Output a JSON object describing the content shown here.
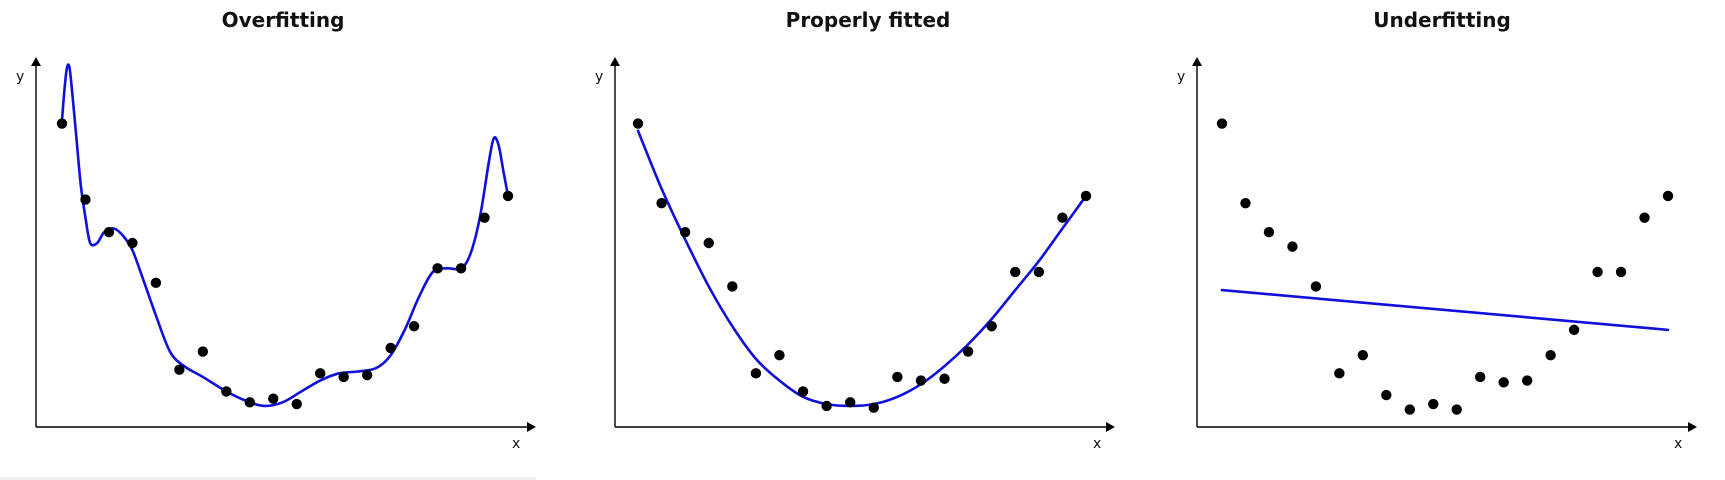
{
  "chart_data": [
    {
      "type": "line",
      "title": "Overfitting",
      "xlabel": "x",
      "ylabel": "y",
      "xlim": [
        0,
        1
      ],
      "ylim": [
        0,
        1
      ],
      "fit_color": "#1010dd",
      "point_color": "#000000",
      "points": [
        {
          "x": 0.05,
          "y": 0.83
        },
        {
          "x": 0.1,
          "y": 0.62
        },
        {
          "x": 0.15,
          "y": 0.53
        },
        {
          "x": 0.2,
          "y": 0.5
        },
        {
          "x": 0.25,
          "y": 0.39
        },
        {
          "x": 0.3,
          "y": 0.15
        },
        {
          "x": 0.35,
          "y": 0.2
        },
        {
          "x": 0.4,
          "y": 0.09
        },
        {
          "x": 0.45,
          "y": 0.06
        },
        {
          "x": 0.5,
          "y": 0.07
        },
        {
          "x": 0.55,
          "y": 0.055
        },
        {
          "x": 0.6,
          "y": 0.14
        },
        {
          "x": 0.65,
          "y": 0.13
        },
        {
          "x": 0.7,
          "y": 0.135
        },
        {
          "x": 0.75,
          "y": 0.21
        },
        {
          "x": 0.8,
          "y": 0.27
        },
        {
          "x": 0.85,
          "y": 0.43
        },
        {
          "x": 0.9,
          "y": 0.43
        },
        {
          "x": 0.95,
          "y": 0.57
        },
        {
          "x": 1.0,
          "y": 0.63
        }
      ],
      "fit_curve": {
        "x": [
          0.05,
          0.055,
          0.06,
          0.065,
          0.07,
          0.08,
          0.09,
          0.1,
          0.11,
          0.125,
          0.14,
          0.16,
          0.18,
          0.2,
          0.22,
          0.25,
          0.28,
          0.31,
          0.35,
          0.4,
          0.44,
          0.48,
          0.52,
          0.56,
          0.6,
          0.64,
          0.68,
          0.72,
          0.75,
          0.78,
          0.81,
          0.84,
          0.87,
          0.9,
          0.92,
          0.94,
          0.96,
          0.97,
          0.98,
          0.99,
          1.0
        ],
        "y": [
          0.84,
          0.92,
          0.98,
          0.99,
          0.94,
          0.8,
          0.66,
          0.57,
          0.5,
          0.5,
          0.53,
          0.54,
          0.52,
          0.48,
          0.41,
          0.3,
          0.2,
          0.16,
          0.13,
          0.09,
          0.065,
          0.05,
          0.06,
          0.09,
          0.12,
          0.14,
          0.145,
          0.155,
          0.19,
          0.26,
          0.35,
          0.42,
          0.43,
          0.43,
          0.47,
          0.57,
          0.73,
          0.79,
          0.77,
          0.7,
          0.63
        ]
      }
    },
    {
      "type": "line",
      "title": "Properly fitted",
      "xlabel": "x",
      "ylabel": "y",
      "xlim": [
        0,
        1
      ],
      "ylim": [
        0,
        1
      ],
      "fit_color": "#1010dd",
      "point_color": "#000000",
      "points": [
        {
          "x": 0.05,
          "y": 0.83
        },
        {
          "x": 0.1,
          "y": 0.61
        },
        {
          "x": 0.15,
          "y": 0.53
        },
        {
          "x": 0.2,
          "y": 0.5
        },
        {
          "x": 0.25,
          "y": 0.38
        },
        {
          "x": 0.3,
          "y": 0.14
        },
        {
          "x": 0.35,
          "y": 0.19
        },
        {
          "x": 0.4,
          "y": 0.09
        },
        {
          "x": 0.45,
          "y": 0.05
        },
        {
          "x": 0.5,
          "y": 0.06
        },
        {
          "x": 0.55,
          "y": 0.045
        },
        {
          "x": 0.6,
          "y": 0.13
        },
        {
          "x": 0.65,
          "y": 0.12
        },
        {
          "x": 0.7,
          "y": 0.125
        },
        {
          "x": 0.75,
          "y": 0.2
        },
        {
          "x": 0.8,
          "y": 0.27
        },
        {
          "x": 0.85,
          "y": 0.42
        },
        {
          "x": 0.9,
          "y": 0.42
        },
        {
          "x": 0.95,
          "y": 0.57
        },
        {
          "x": 1.0,
          "y": 0.63
        }
      ],
      "fit_curve": {
        "x": [
          0.05,
          0.1,
          0.15,
          0.2,
          0.25,
          0.3,
          0.35,
          0.4,
          0.45,
          0.5,
          0.55,
          0.6,
          0.65,
          0.7,
          0.75,
          0.8,
          0.85,
          0.9,
          0.95,
          1.0
        ],
        "y": [
          0.81,
          0.65,
          0.51,
          0.38,
          0.27,
          0.18,
          0.12,
          0.075,
          0.055,
          0.05,
          0.055,
          0.075,
          0.11,
          0.16,
          0.22,
          0.29,
          0.37,
          0.45,
          0.54,
          0.63
        ]
      }
    },
    {
      "type": "line",
      "title": "Underfitting",
      "xlabel": "x",
      "ylabel": "y",
      "xlim": [
        0,
        1
      ],
      "ylim": [
        0,
        1
      ],
      "fit_color": "#1010dd",
      "point_color": "#000000",
      "points": [
        {
          "x": 0.05,
          "y": 0.83
        },
        {
          "x": 0.1,
          "y": 0.61
        },
        {
          "x": 0.15,
          "y": 0.53
        },
        {
          "x": 0.2,
          "y": 0.49
        },
        {
          "x": 0.25,
          "y": 0.38
        },
        {
          "x": 0.3,
          "y": 0.14
        },
        {
          "x": 0.35,
          "y": 0.19
        },
        {
          "x": 0.4,
          "y": 0.08
        },
        {
          "x": 0.45,
          "y": 0.04
        },
        {
          "x": 0.5,
          "y": 0.055
        },
        {
          "x": 0.55,
          "y": 0.04
        },
        {
          "x": 0.6,
          "y": 0.13
        },
        {
          "x": 0.65,
          "y": 0.115
        },
        {
          "x": 0.7,
          "y": 0.12
        },
        {
          "x": 0.75,
          "y": 0.19
        },
        {
          "x": 0.8,
          "y": 0.26
        },
        {
          "x": 0.85,
          "y": 0.42
        },
        {
          "x": 0.9,
          "y": 0.42
        },
        {
          "x": 0.95,
          "y": 0.57
        },
        {
          "x": 1.0,
          "y": 0.63
        }
      ],
      "fit_curve": {
        "x": [
          0.05,
          1.0
        ],
        "y": [
          0.37,
          0.26
        ]
      }
    }
  ]
}
